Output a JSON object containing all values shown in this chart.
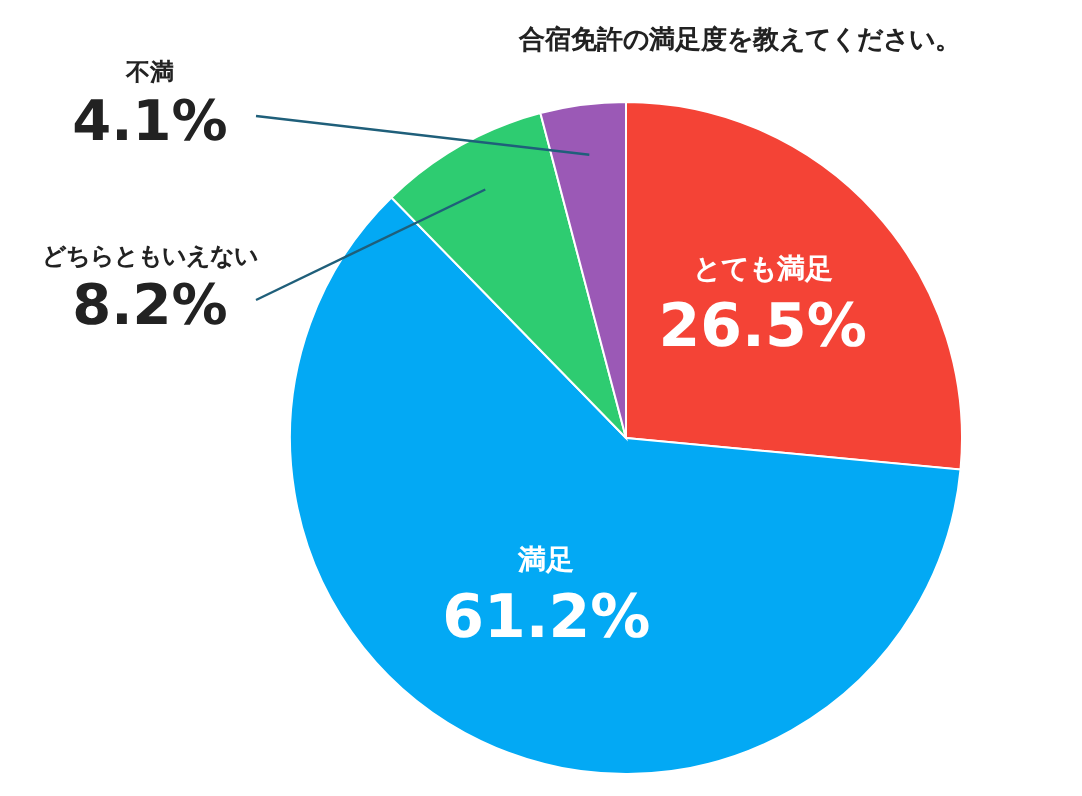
{
  "chart_data": {
    "type": "pie",
    "title": "合宿免許の満足度を教えてください。",
    "categories": [
      "とても満足",
      "満足",
      "どちらともいえない",
      "不満"
    ],
    "values": [
      26.5,
      61.2,
      8.2,
      4.1
    ],
    "value_labels": [
      "26.5%",
      "61.2%",
      "8.2%",
      "4.1%"
    ],
    "colors": [
      "#f44336",
      "#03a9f4",
      "#2ecc71",
      "#9b59b6"
    ]
  }
}
